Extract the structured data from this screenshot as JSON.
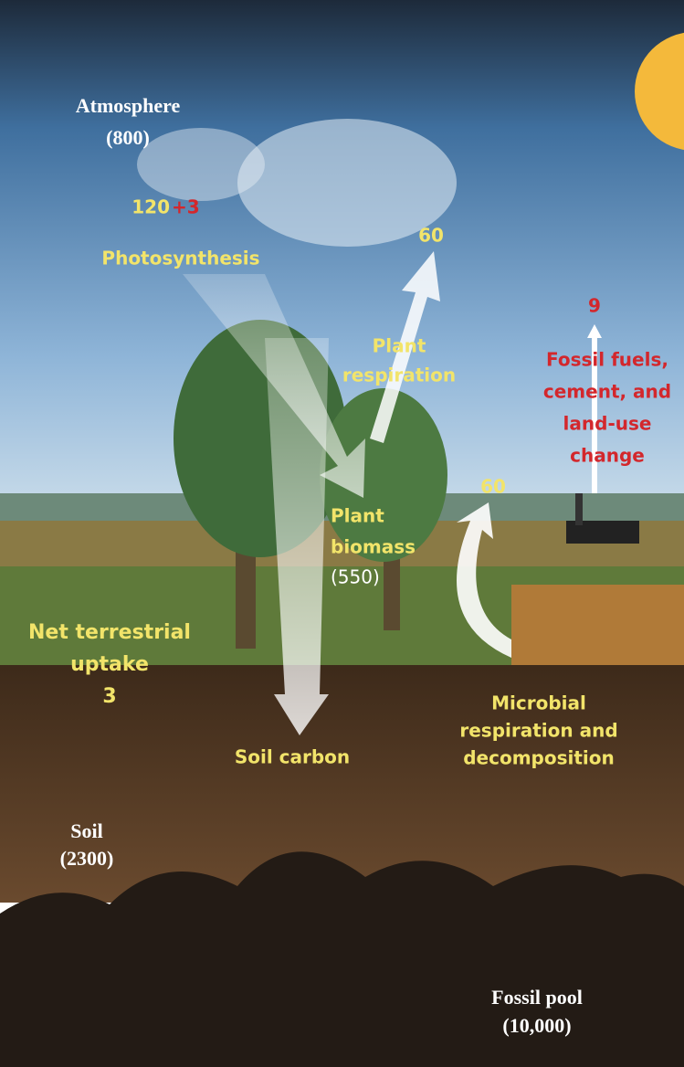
{
  "atmosphere": {
    "label": "Atmosphere",
    "amount": "(800)"
  },
  "photosynthesis": {
    "value": 120,
    "change": "+3",
    "label": "Photosynthesis"
  },
  "plant_respiration": {
    "value": 60,
    "label": [
      "Plant",
      "respiration"
    ]
  },
  "fossil_emissions": {
    "value": 9,
    "label": [
      "Fossil fuels,",
      "cement, and",
      "land-use",
      "change"
    ]
  },
  "plant_biomass": {
    "label": [
      "Plant",
      "biomass"
    ],
    "amount": "(550)"
  },
  "microbial_respiration": {
    "value": 60,
    "label": [
      "Microbial",
      "respiration and",
      "decomposition"
    ]
  },
  "net_uptake": {
    "label": [
      "Net terrestrial",
      "uptake"
    ],
    "value": 3
  },
  "soil_carbon": {
    "label": "Soil carbon"
  },
  "soil": {
    "label": "Soil",
    "amount": "(2300)"
  },
  "fossil_pool": {
    "label": "Fossil pool",
    "amount": "(10,000)"
  }
}
